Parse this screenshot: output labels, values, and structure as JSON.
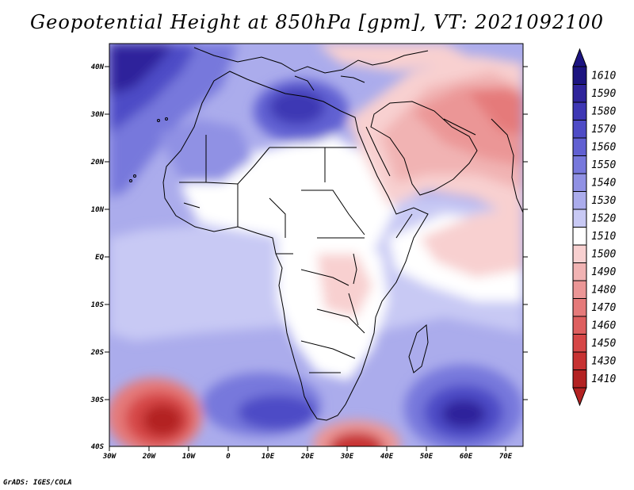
{
  "title": "Geopotential Height at 850hPa [gpm], VT: 2021092100",
  "credit": "GrADS: IGES/COLA",
  "latitude_labels": [
    "40N",
    "30N",
    "20N",
    "10N",
    "EQ",
    "10S",
    "20S",
    "30S",
    "40S"
  ],
  "longitude_labels": [
    "30W",
    "20W",
    "10W",
    "0",
    "10E",
    "20E",
    "30E",
    "40E",
    "50E",
    "60E",
    "70E"
  ],
  "colorbar": {
    "levels": [
      "1610",
      "1590",
      "1580",
      "1570",
      "1560",
      "1550",
      "1540",
      "1530",
      "1520",
      "1510",
      "1500",
      "1490",
      "1480",
      "1470",
      "1460",
      "1450",
      "1430",
      "1410"
    ],
    "colors": [
      "#1c1480",
      "#2f249b",
      "#3e37b4",
      "#4e4bc6",
      "#6160d2",
      "#7778dc",
      "#9091e4",
      "#abacec",
      "#c8c9f4",
      "#ffffff",
      "#f8d0d0",
      "#f1b3b3",
      "#eb9696",
      "#e57a7a",
      "#de5f5f",
      "#d64747",
      "#c73232",
      "#b32222"
    ]
  }
}
